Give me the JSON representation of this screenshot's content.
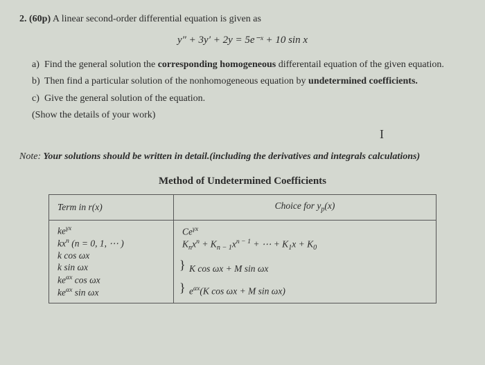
{
  "question": {
    "number": "2.",
    "points": "(60p)",
    "intro": "A linear second-order differential equation is given as",
    "equation": "y″ + 3y′ + 2y = 5e⁻ˣ + 10 sin x",
    "parts": {
      "a": {
        "label": "a)",
        "text_before": "Find the general solution the ",
        "bold": "corresponding homogeneous",
        "text_after": " differentail equation of the given equation."
      },
      "b": {
        "label": "b)",
        "text_before": "Then find a particular solution of the nonhomogeneous equation by ",
        "bold": "undetermined coefficients.",
        "text_after": ""
      },
      "c": {
        "label": "c)",
        "text": "Give the general solution of the equation."
      }
    },
    "show_details": "(Show the details of your work)",
    "cursor_mark": "I",
    "note_lead": "Note:",
    "note_body": " Your solutions should be written in detail.(including the derivatives and integrals calculations)"
  },
  "table": {
    "title": "Method of Undetermined Coefficients",
    "header_left": "Term in r(x)",
    "header_right": "Choice for y",
    "header_right_sub": "p",
    "header_right_tail": "(x)",
    "rows": {
      "r1l": "ke",
      "r1l_sup": "γx",
      "r1r": "Ce",
      "r1r_sup": "γx",
      "r2l_a": "kx",
      "r2l_sup": "n",
      "r2l_b": " (n = 0, 1, ⋯ )",
      "r2r_a": "K",
      "r2r_sub1": "n",
      "r2r_b": "x",
      "r2r_sup1": "n",
      "r2r_c": " + K",
      "r2r_sub2": "n − 1",
      "r2r_d": "x",
      "r2r_sup2": "n − 1",
      "r2r_e": " + ⋯ + K",
      "r2r_sub3": "1",
      "r2r_f": "x + K",
      "r2r_sub4": "0",
      "r3l": "k cos ωx",
      "r4l": "k sin ωx",
      "r34r": "K cos ωx + M sin ωx",
      "r5l_a": "ke",
      "r5l_sup": "αx",
      "r5l_b": " cos ωx",
      "r6l_a": "ke",
      "r6l_sup": "αx",
      "r6l_b": " sin ωx",
      "r56r_a": "e",
      "r56r_sup": "αx",
      "r56r_b": "(K cos ωx + M sin ωx)"
    }
  },
  "colors": {
    "background": "#d4d8d0",
    "text": "#2a2a2a",
    "border": "#555555"
  }
}
